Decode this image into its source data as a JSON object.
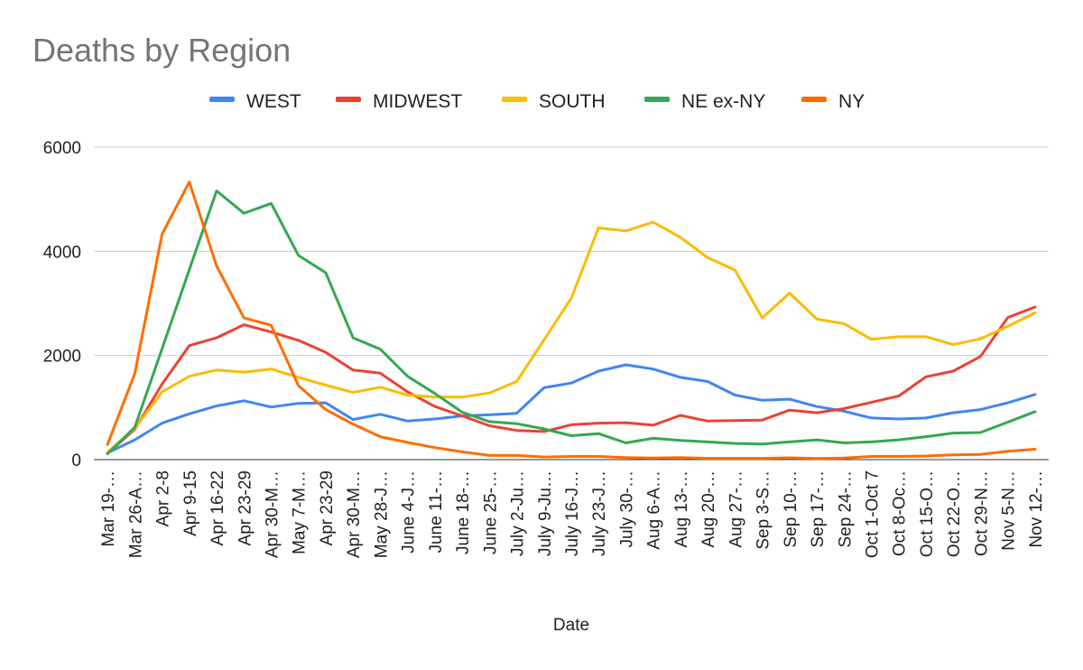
{
  "chart_data": {
    "type": "line",
    "title": "Deaths by Region",
    "xlabel": "Date",
    "ylabel": "",
    "ylim": [
      0,
      6000
    ],
    "yticks": [
      0,
      2000,
      4000,
      6000
    ],
    "grid": true,
    "legend_position": "top",
    "categories": [
      "Mar 19-…",
      "Mar 26-A…",
      "Apr 2-8",
      "Apr 9-15",
      "Apr 16-22",
      "Apr 23-29",
      "Apr 30-M…",
      "May 7-M…",
      "Apr 23-29",
      "Apr 30-M…",
      "May 28-J…",
      "June 4-J…",
      "June 11-…",
      "June 18-…",
      "June 25-…",
      "July 2-Ju…",
      "July 9-Ju…",
      "July 16-J…",
      "July 23-J…",
      "July 30-…",
      "Aug 6-A…",
      "Aug 13-…",
      "Aug 20-…",
      "Aug 27-…",
      "Sep 3-S…",
      "Sep 10-…",
      "Sep 17-…",
      "Sep 24-…",
      "Oct 1-Oct 7",
      "Oct 8-Oc…",
      "Oct 15-O…",
      "Oct 22-O…",
      "Oct 29-N…",
      "Nov 5-N…",
      "Nov 12-…"
    ],
    "series": [
      {
        "name": "WEST",
        "color": "#4285f4",
        "values": [
          130,
          380,
          700,
          880,
          1030,
          1130,
          1010,
          1080,
          1090,
          770,
          870,
          740,
          780,
          840,
          860,
          890,
          1380,
          1470,
          1700,
          1820,
          1740,
          1580,
          1500,
          1240,
          1140,
          1160,
          1020,
          930,
          800,
          780,
          800,
          900,
          960,
          1090,
          1250
        ]
      },
      {
        "name": "MIDWEST",
        "color": "#ea4335",
        "values": [
          120,
          580,
          1450,
          2190,
          2340,
          2590,
          2450,
          2290,
          2060,
          1720,
          1660,
          1300,
          1020,
          840,
          650,
          560,
          540,
          670,
          700,
          710,
          660,
          850,
          740,
          750,
          760,
          950,
          900,
          980,
          1100,
          1220,
          1590,
          1700,
          1980,
          2730,
          2930
        ]
      },
      {
        "name": "SOUTH",
        "color": "#fbbc04",
        "values": [
          140,
          600,
          1300,
          1600,
          1720,
          1680,
          1740,
          1580,
          1430,
          1290,
          1390,
          1240,
          1200,
          1200,
          1280,
          1500,
          2300,
          3100,
          4450,
          4390,
          4560,
          4270,
          3880,
          3640,
          2720,
          3200,
          2700,
          2610,
          2310,
          2360,
          2360,
          2210,
          2320,
          2560,
          2820
        ]
      },
      {
        "name": "NE ex-NY",
        "color": "#34a853",
        "values": [
          110,
          620,
          2130,
          3650,
          5160,
          4730,
          4920,
          3920,
          3590,
          2340,
          2120,
          1600,
          1270,
          910,
          730,
          690,
          590,
          460,
          500,
          320,
          410,
          370,
          340,
          310,
          300,
          340,
          380,
          320,
          340,
          380,
          440,
          510,
          520,
          720,
          920
        ]
      },
      {
        "name": "NY",
        "color": "#ff6d01",
        "values": [
          290,
          1650,
          4330,
          5330,
          3720,
          2720,
          2580,
          1420,
          960,
          680,
          440,
          330,
          230,
          150,
          80,
          80,
          50,
          60,
          60,
          40,
          30,
          40,
          25,
          25,
          25,
          35,
          20,
          30,
          60,
          60,
          70,
          90,
          100,
          160,
          200
        ]
      }
    ]
  }
}
